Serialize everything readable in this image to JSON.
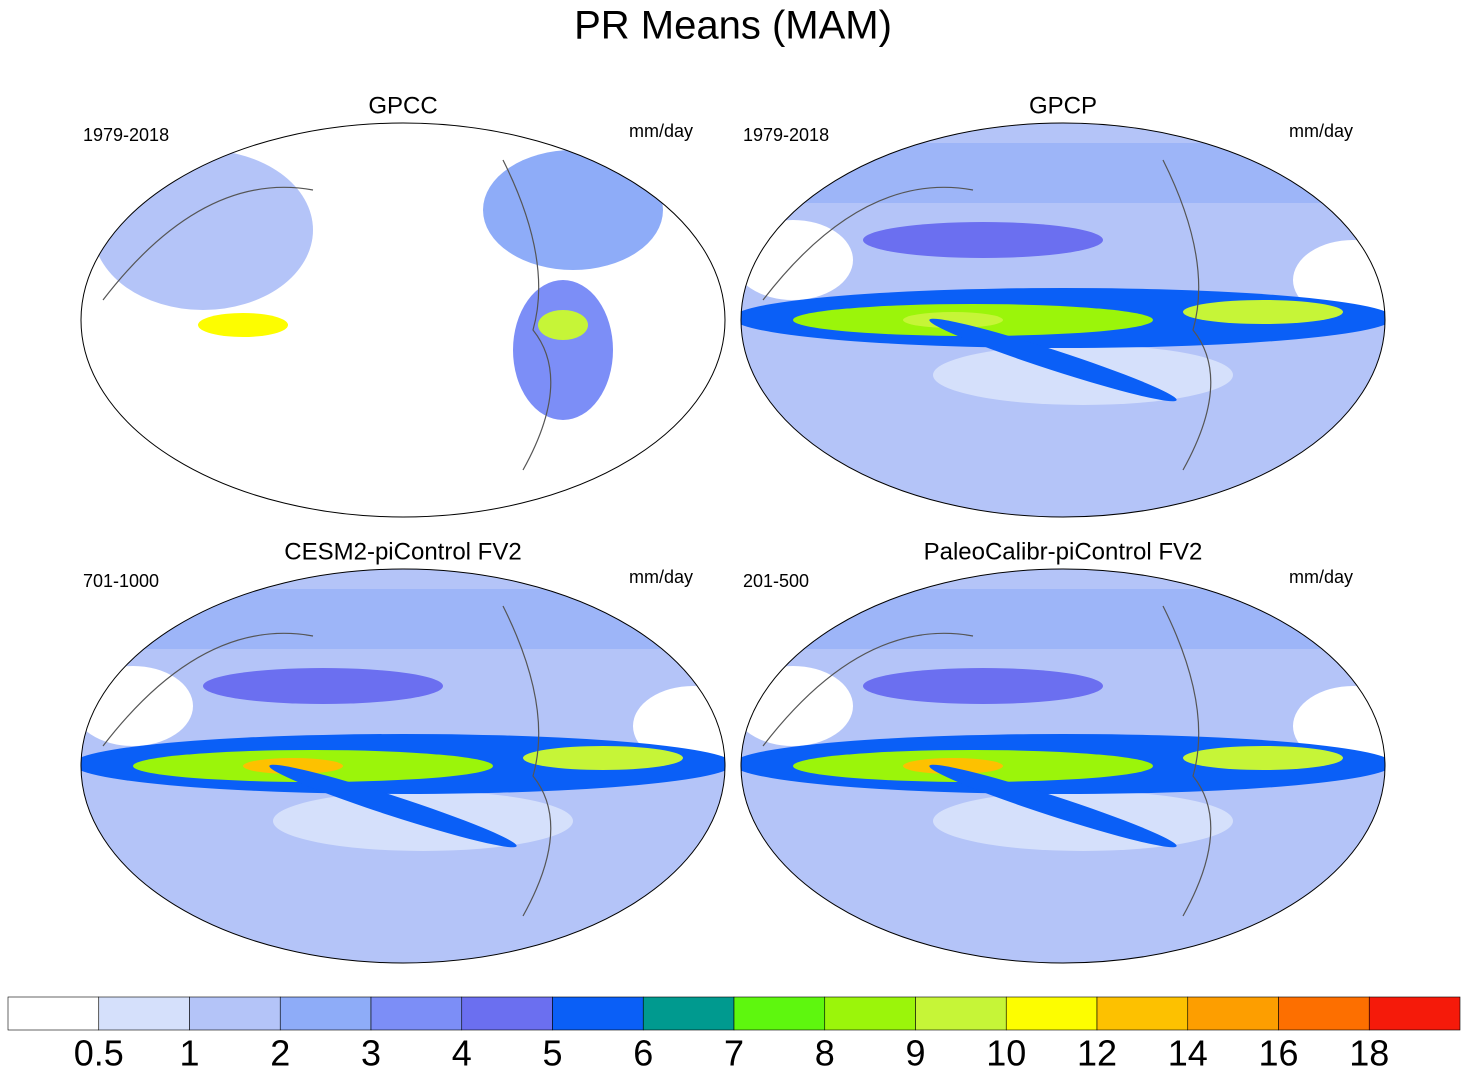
{
  "title": "PR Means (MAM)",
  "panels": [
    {
      "title": "GPCC",
      "period": "1979-2018",
      "units": "mm/day"
    },
    {
      "title": "GPCP",
      "period": "1979-2018",
      "units": "mm/day"
    },
    {
      "title": "CESM2-piControl FV2",
      "period": "701-1000",
      "units": "mm/day"
    },
    {
      "title": "PaleoCalibr-piControl FV2",
      "period": "201-500",
      "units": "mm/day"
    }
  ],
  "colorbar": {
    "levels": [
      0.5,
      1,
      2,
      3,
      4,
      5,
      6,
      7,
      8,
      9,
      10,
      12,
      14,
      16,
      18
    ],
    "colors": [
      "#ffffff",
      "#d5e0fb",
      "#b4c4f8",
      "#8eacf8",
      "#7c8ef7",
      "#6b6ff0",
      "#0a5ff7",
      "#009a8f",
      "#5ef70e",
      "#9bf50a",
      "#c6f537",
      "#fdfd00",
      "#fdc100",
      "#fd9e00",
      "#fd6f00",
      "#f51a0a"
    ]
  }
}
